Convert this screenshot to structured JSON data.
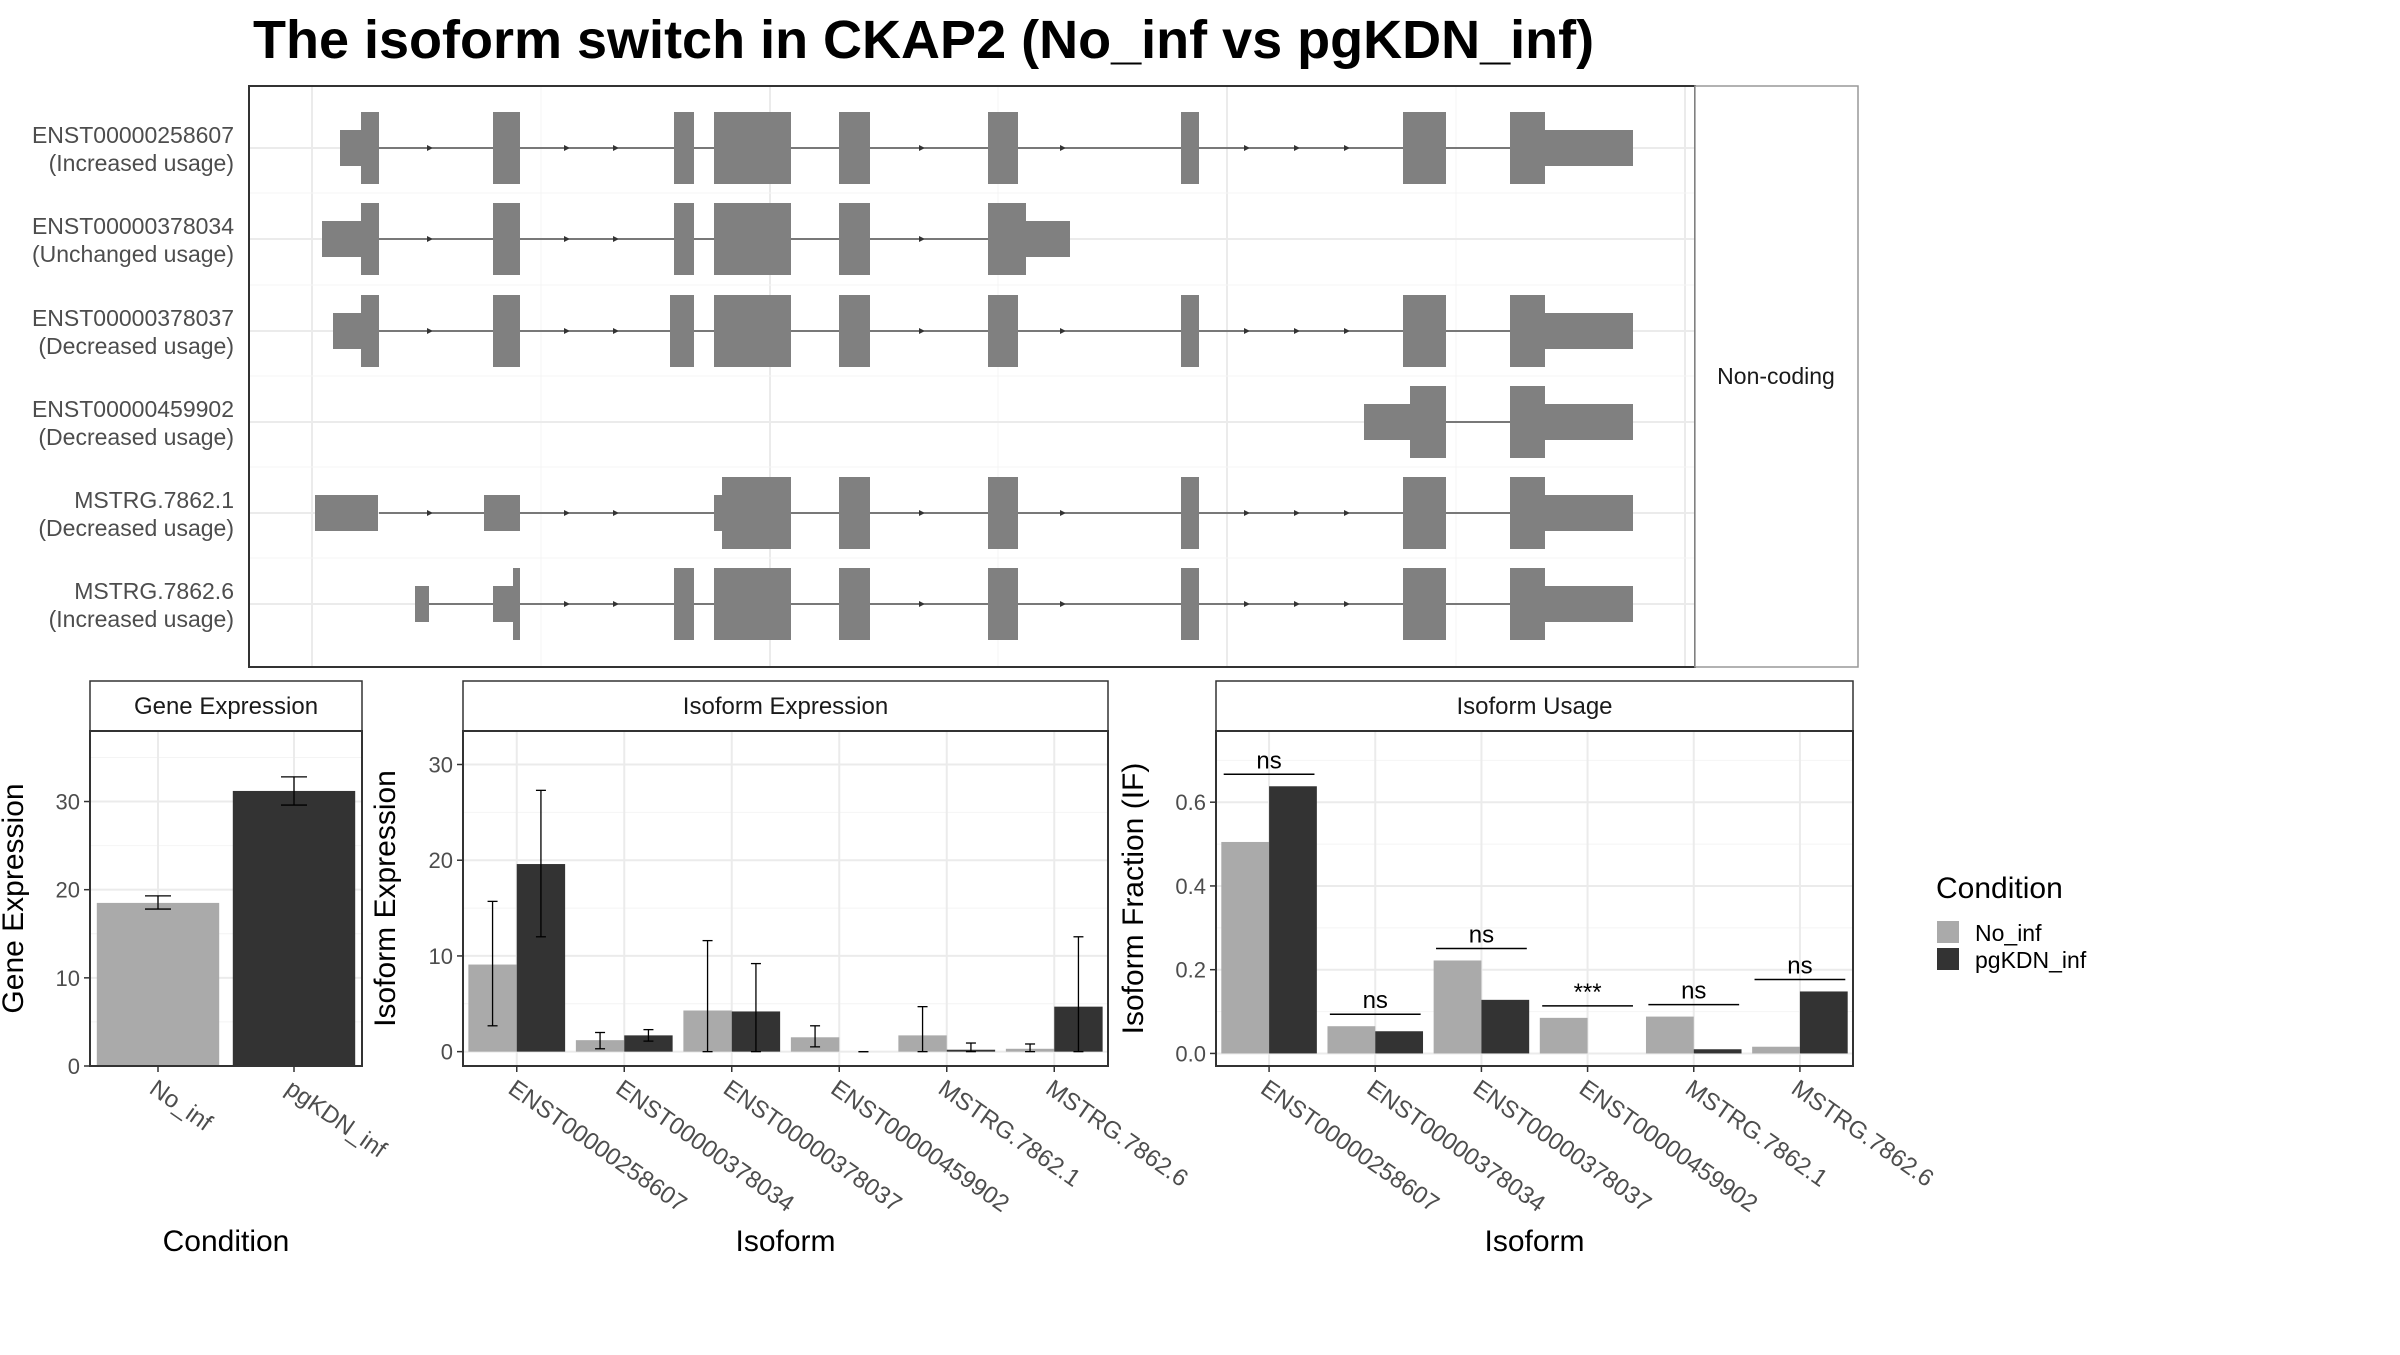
{
  "title": "The isoform switch in CKAP2 (No_inf vs pgKDN_inf)",
  "colors": {
    "no_inf": "#aaaaaa",
    "pgkdn_inf": "#333333",
    "exon": "#808080",
    "grid": "#ebebeb",
    "panel_border": "#333333",
    "strip_border": "#999999"
  },
  "structure": {
    "facet_label": "Non-coding",
    "isoforms": [
      {
        "id": "ENST00000258607",
        "status": "(Increased usage)"
      },
      {
        "id": "ENST00000378034",
        "status": "(Unchanged usage)"
      },
      {
        "id": "ENST00000378037",
        "status": "(Decreased usage)"
      },
      {
        "id": "ENST00000459902",
        "status": "(Decreased usage)"
      },
      {
        "id": "MSTRG.7862.1",
        "status": "(Decreased usage)"
      },
      {
        "id": "MSTRG.7862.6",
        "status": "(Increased usage)"
      }
    ]
  },
  "legend": {
    "title": "Condition",
    "items": [
      "No_inf",
      "pgKDN_inf"
    ]
  },
  "chart_data": [
    {
      "type": "bar",
      "title": "Gene Expression",
      "xlabel": "Condition",
      "ylabel": "Gene Expression",
      "categories": [
        "No_inf",
        "pgKDN_inf"
      ],
      "values": [
        18.5,
        31.2
      ],
      "errors": [
        [
          17.8,
          19.3
        ],
        [
          29.6,
          32.8
        ]
      ],
      "ylim": [
        0,
        38
      ],
      "yticks": [
        0,
        10,
        20,
        30
      ],
      "grid": true
    },
    {
      "type": "bar",
      "title": "Isoform Expression",
      "xlabel": "Isoform",
      "ylabel": "Isoform Expression",
      "categories": [
        "ENST00000258607",
        "ENST00000378034",
        "ENST00000378037",
        "ENST00000459902",
        "MSTRG.7862.1",
        "MSTRG.7862.6"
      ],
      "series": [
        {
          "name": "No_inf",
          "values": [
            9.1,
            1.2,
            4.3,
            1.5,
            1.7,
            0.3
          ],
          "errors": [
            [
              2.7,
              15.7
            ],
            [
              0.3,
              2.0
            ],
            [
              0.0,
              11.6
            ],
            [
              0.5,
              2.7
            ],
            [
              0.0,
              4.7
            ],
            [
              0.0,
              0.8
            ]
          ]
        },
        {
          "name": "pgKDN_inf",
          "values": [
            19.6,
            1.7,
            4.2,
            0.0,
            0.2,
            4.7
          ],
          "errors": [
            [
              12.0,
              27.3
            ],
            [
              1.1,
              2.3
            ],
            [
              0.0,
              9.2
            ],
            [
              0.0,
              0.0
            ],
            [
              0.0,
              0.9
            ],
            [
              0.0,
              12.0
            ]
          ]
        }
      ],
      "ylim": [
        -1.5,
        33.5
      ],
      "yticks": [
        0,
        10,
        20,
        30
      ],
      "grid": true
    },
    {
      "type": "bar",
      "title": "Isoform Usage",
      "xlabel": "Isoform",
      "ylabel": "Isoform Fraction (IF)",
      "categories": [
        "ENST00000258607",
        "ENST00000378034",
        "ENST00000378037",
        "ENST00000459902",
        "MSTRG.7862.1",
        "MSTRG.7862.6"
      ],
      "series": [
        {
          "name": "No_inf",
          "values": [
            0.505,
            0.065,
            0.222,
            0.085,
            0.088,
            0.016
          ]
        },
        {
          "name": "pgKDN_inf",
          "values": [
            0.638,
            0.053,
            0.128,
            0.0,
            0.01,
            0.148
          ]
        }
      ],
      "significance": [
        "ns",
        "ns",
        "ns",
        "***",
        "ns",
        "ns"
      ],
      "ylim": [
        -0.03,
        0.77
      ],
      "yticks": [
        0.0,
        0.2,
        0.4,
        0.6
      ],
      "grid": true
    }
  ]
}
